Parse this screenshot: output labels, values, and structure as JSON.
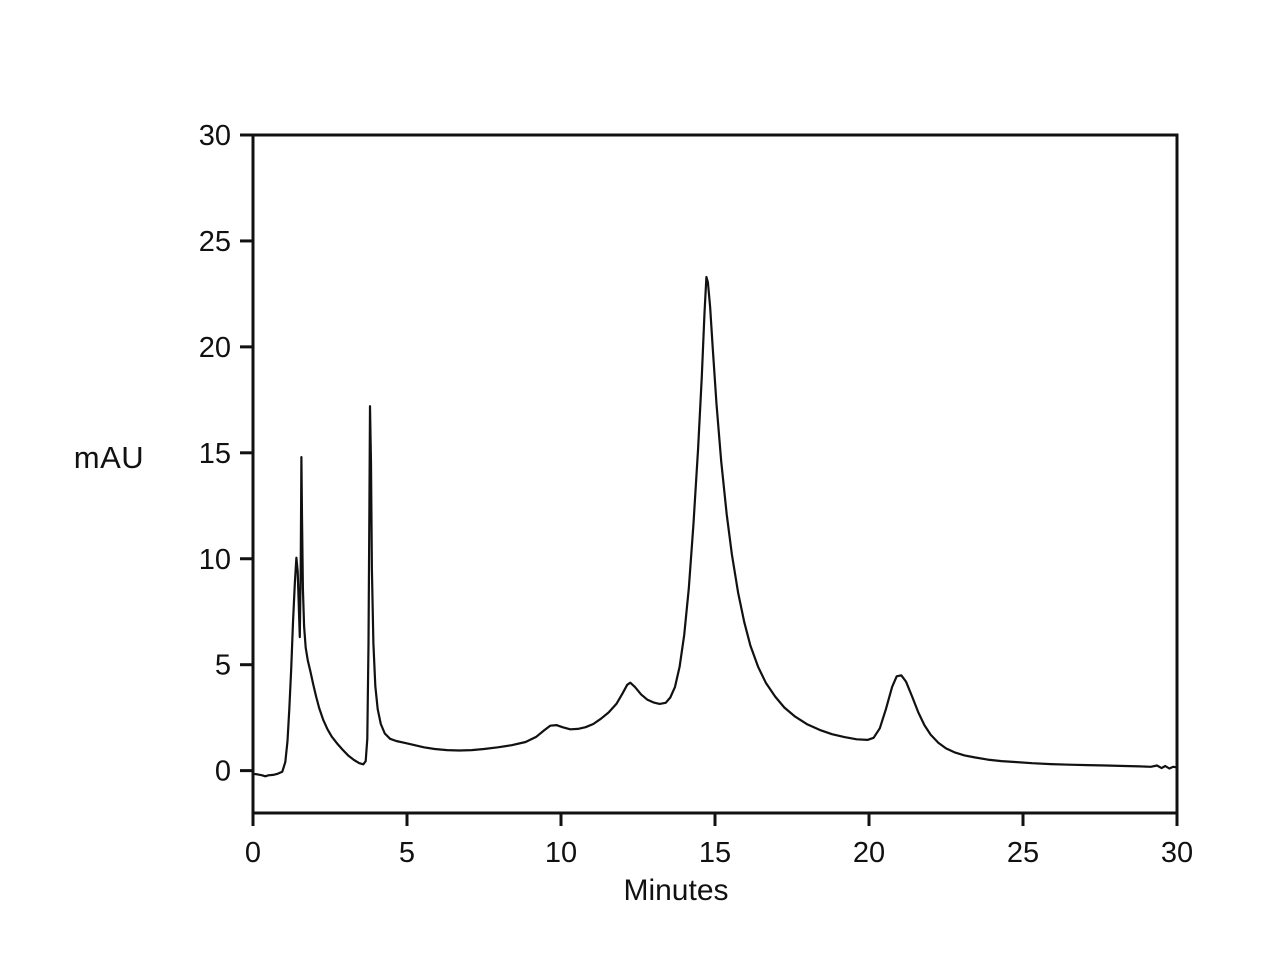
{
  "figure": {
    "background": "#ffffff",
    "line_color": "#111111"
  },
  "chart_data": {
    "type": "line",
    "title": "",
    "xlabel": "Minutes",
    "ylabel": "mAU",
    "xlim": [
      0,
      30
    ],
    "ylim": [
      -2,
      30
    ],
    "x_ticks": [
      "0",
      "5",
      "10",
      "15",
      "20",
      "25",
      "30"
    ],
    "x_tick_values": [
      0,
      5,
      10,
      15,
      20,
      25,
      30
    ],
    "y_ticks": [
      "0",
      "5",
      "10",
      "15",
      "20",
      "25",
      "30"
    ],
    "y_tick_values": [
      0,
      5,
      10,
      15,
      20,
      25,
      30
    ],
    "grid": false,
    "frame": true,
    "legend": "none",
    "peaks": [
      {
        "retention_min": 1.41,
        "height_mAU": 10.0
      },
      {
        "retention_min": 1.57,
        "height_mAU": 14.8
      },
      {
        "retention_min": 3.8,
        "height_mAU": 17.2
      },
      {
        "retention_min": 9.7,
        "height_mAU": 2.15
      },
      {
        "retention_min": 12.2,
        "height_mAU": 4.15
      },
      {
        "retention_min": 14.7,
        "height_mAU": 23.3
      },
      {
        "retention_min": 21.0,
        "height_mAU": 4.5
      }
    ],
    "series": [
      {
        "name": "chromatogram-trace",
        "color": "#111111",
        "points": [
          [
            0.0,
            -0.15
          ],
          [
            0.15,
            -0.18
          ],
          [
            0.3,
            -0.22
          ],
          [
            0.4,
            -0.27
          ],
          [
            0.5,
            -0.22
          ],
          [
            0.65,
            -0.2
          ],
          [
            0.8,
            -0.15
          ],
          [
            0.95,
            -0.05
          ],
          [
            1.05,
            0.4
          ],
          [
            1.12,
            1.4
          ],
          [
            1.18,
            2.9
          ],
          [
            1.24,
            4.8
          ],
          [
            1.3,
            7.0
          ],
          [
            1.36,
            8.9
          ],
          [
            1.41,
            10.05
          ],
          [
            1.45,
            9.4
          ],
          [
            1.49,
            7.6
          ],
          [
            1.52,
            6.3
          ],
          [
            1.55,
            9.5
          ],
          [
            1.57,
            14.8
          ],
          [
            1.59,
            12.0
          ],
          [
            1.62,
            8.6
          ],
          [
            1.66,
            6.8
          ],
          [
            1.71,
            5.8
          ],
          [
            1.78,
            5.2
          ],
          [
            1.86,
            4.7
          ],
          [
            1.95,
            4.1
          ],
          [
            2.05,
            3.5
          ],
          [
            2.15,
            2.95
          ],
          [
            2.28,
            2.4
          ],
          [
            2.42,
            1.95
          ],
          [
            2.56,
            1.6
          ],
          [
            2.72,
            1.3
          ],
          [
            2.9,
            1.0
          ],
          [
            3.1,
            0.7
          ],
          [
            3.28,
            0.5
          ],
          [
            3.45,
            0.35
          ],
          [
            3.58,
            0.3
          ],
          [
            3.66,
            0.45
          ],
          [
            3.71,
            1.5
          ],
          [
            3.75,
            6.0
          ],
          [
            3.78,
            12.5
          ],
          [
            3.8,
            17.2
          ],
          [
            3.83,
            14.5
          ],
          [
            3.86,
            9.5
          ],
          [
            3.91,
            6.0
          ],
          [
            3.97,
            4.0
          ],
          [
            4.05,
            2.9
          ],
          [
            4.15,
            2.2
          ],
          [
            4.28,
            1.75
          ],
          [
            4.45,
            1.5
          ],
          [
            4.65,
            1.4
          ],
          [
            4.9,
            1.32
          ],
          [
            5.2,
            1.22
          ],
          [
            5.55,
            1.1
          ],
          [
            5.9,
            1.02
          ],
          [
            6.3,
            0.97
          ],
          [
            6.7,
            0.95
          ],
          [
            7.1,
            0.97
          ],
          [
            7.5,
            1.02
          ],
          [
            7.95,
            1.1
          ],
          [
            8.4,
            1.2
          ],
          [
            8.85,
            1.35
          ],
          [
            9.2,
            1.6
          ],
          [
            9.45,
            1.9
          ],
          [
            9.65,
            2.12
          ],
          [
            9.85,
            2.15
          ],
          [
            10.05,
            2.05
          ],
          [
            10.3,
            1.95
          ],
          [
            10.55,
            1.97
          ],
          [
            10.8,
            2.05
          ],
          [
            11.05,
            2.2
          ],
          [
            11.3,
            2.45
          ],
          [
            11.55,
            2.75
          ],
          [
            11.8,
            3.15
          ],
          [
            12.0,
            3.65
          ],
          [
            12.15,
            4.05
          ],
          [
            12.25,
            4.15
          ],
          [
            12.4,
            3.95
          ],
          [
            12.6,
            3.6
          ],
          [
            12.8,
            3.35
          ],
          [
            13.0,
            3.22
          ],
          [
            13.2,
            3.15
          ],
          [
            13.4,
            3.2
          ],
          [
            13.55,
            3.45
          ],
          [
            13.7,
            3.95
          ],
          [
            13.85,
            4.9
          ],
          [
            14.0,
            6.4
          ],
          [
            14.15,
            8.6
          ],
          [
            14.3,
            11.6
          ],
          [
            14.45,
            15.2
          ],
          [
            14.57,
            18.6
          ],
          [
            14.66,
            21.6
          ],
          [
            14.72,
            23.3
          ],
          [
            14.77,
            23.05
          ],
          [
            14.84,
            21.9
          ],
          [
            14.93,
            19.9
          ],
          [
            15.05,
            17.3
          ],
          [
            15.2,
            14.6
          ],
          [
            15.38,
            12.1
          ],
          [
            15.55,
            10.2
          ],
          [
            15.75,
            8.4
          ],
          [
            15.95,
            7.0
          ],
          [
            16.15,
            5.9
          ],
          [
            16.4,
            4.9
          ],
          [
            16.65,
            4.15
          ],
          [
            16.95,
            3.5
          ],
          [
            17.25,
            2.98
          ],
          [
            17.6,
            2.55
          ],
          [
            18.0,
            2.18
          ],
          [
            18.4,
            1.92
          ],
          [
            18.8,
            1.72
          ],
          [
            19.2,
            1.58
          ],
          [
            19.6,
            1.48
          ],
          [
            19.95,
            1.45
          ],
          [
            20.15,
            1.55
          ],
          [
            20.35,
            2.0
          ],
          [
            20.55,
            2.9
          ],
          [
            20.75,
            3.95
          ],
          [
            20.9,
            4.45
          ],
          [
            21.05,
            4.5
          ],
          [
            21.2,
            4.2
          ],
          [
            21.4,
            3.5
          ],
          [
            21.6,
            2.75
          ],
          [
            21.8,
            2.15
          ],
          [
            22.0,
            1.7
          ],
          [
            22.25,
            1.32
          ],
          [
            22.5,
            1.05
          ],
          [
            22.8,
            0.85
          ],
          [
            23.1,
            0.72
          ],
          [
            23.45,
            0.62
          ],
          [
            23.85,
            0.52
          ],
          [
            24.3,
            0.45
          ],
          [
            24.8,
            0.4
          ],
          [
            25.3,
            0.35
          ],
          [
            25.9,
            0.31
          ],
          [
            26.5,
            0.28
          ],
          [
            27.1,
            0.26
          ],
          [
            27.7,
            0.24
          ],
          [
            28.3,
            0.22
          ],
          [
            28.8,
            0.2
          ],
          [
            29.15,
            0.18
          ],
          [
            29.35,
            0.24
          ],
          [
            29.5,
            0.12
          ],
          [
            29.62,
            0.22
          ],
          [
            29.75,
            0.1
          ],
          [
            29.88,
            0.18
          ],
          [
            30.0,
            0.15
          ]
        ]
      }
    ]
  }
}
